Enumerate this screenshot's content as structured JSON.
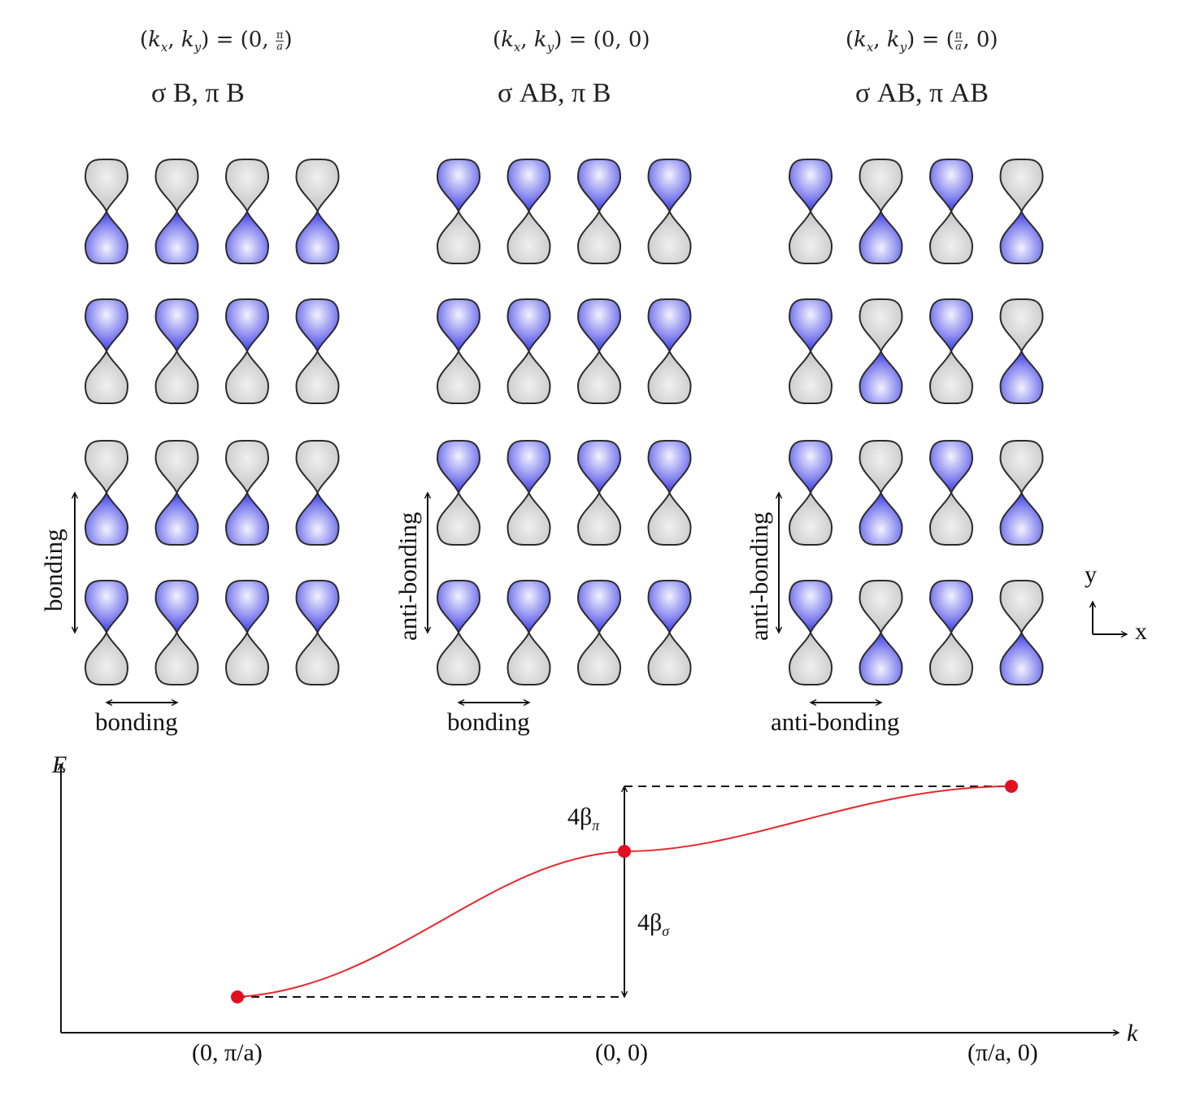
{
  "panels": [
    {
      "k_prefix": "(k",
      "k_value": "(0, π/a)",
      "symmetry": "σ B, π B",
      "y_label": "bonding",
      "x_label": "bonding",
      "rows": [
        [
          0,
          0,
          0,
          0
        ],
        [
          1,
          1,
          1,
          1
        ],
        [
          0,
          0,
          0,
          0
        ],
        [
          1,
          1,
          1,
          1
        ]
      ]
    },
    {
      "k_value": "(0, 0)",
      "symmetry": "σ AB, π B",
      "y_label": "anti-bonding",
      "x_label": "bonding",
      "rows": [
        [
          1,
          1,
          1,
          1
        ],
        [
          1,
          1,
          1,
          1
        ],
        [
          1,
          1,
          1,
          1
        ],
        [
          1,
          1,
          1,
          1
        ]
      ]
    },
    {
      "k_value": "(π/a, 0)",
      "symmetry": "σ AB, π AB",
      "y_label": "anti-bonding",
      "x_label": "anti-bonding",
      "rows": [
        [
          1,
          0,
          1,
          0
        ],
        [
          1,
          0,
          1,
          0
        ],
        [
          1,
          0,
          1,
          0
        ],
        [
          1,
          0,
          1,
          0
        ]
      ]
    }
  ],
  "axes_indicator": {
    "y": "y",
    "x": "x"
  },
  "band_plot": {
    "y_axis_label": "E",
    "x_axis_label": "k",
    "tick_labels": [
      "(0, π/a)",
      "(0, 0)",
      "(π/a, 0)"
    ],
    "beta_pi_label": "4β",
    "beta_pi_sub": "π",
    "beta_sigma_label": "4β",
    "beta_sigma_sub": "σ"
  },
  "colors": {
    "lobe_blue": "#3a3ae8",
    "lobe_grey": "#d6d6d6",
    "curve": "#e8262b",
    "point": "#e01020"
  }
}
